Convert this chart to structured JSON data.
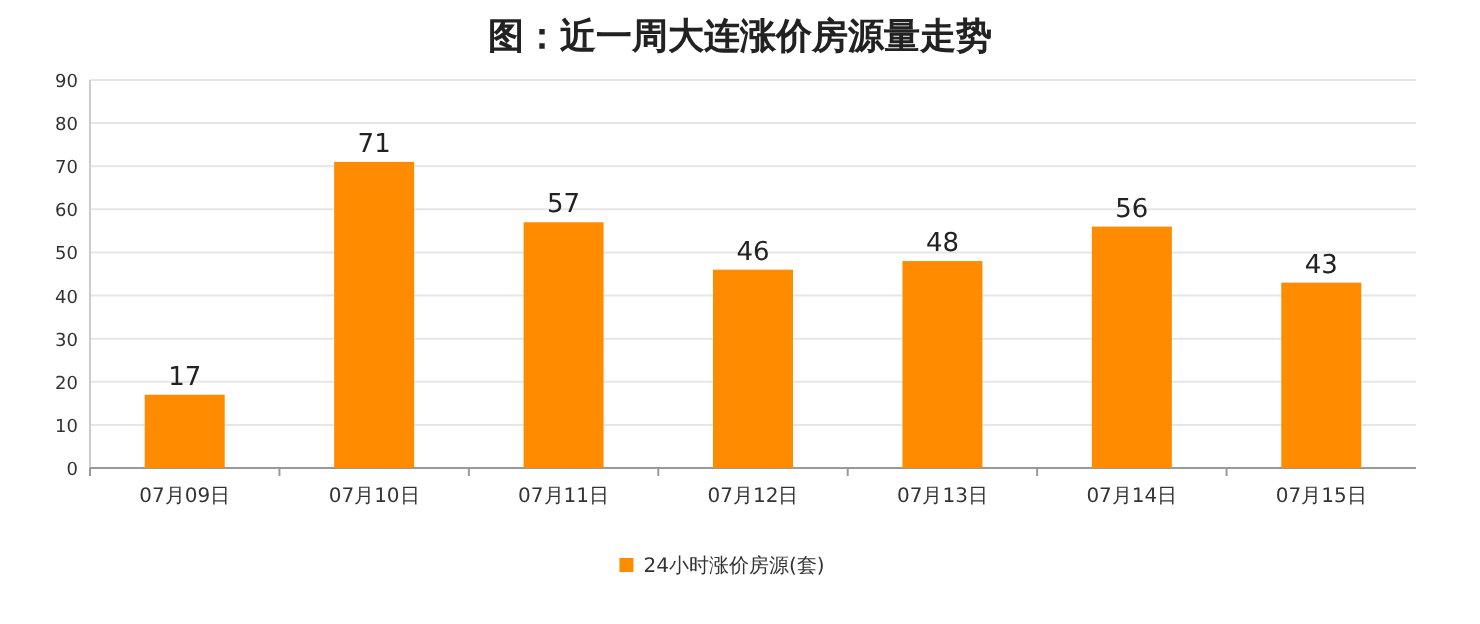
{
  "chart_data": {
    "type": "bar",
    "title": "图：近一周大连涨价房源量走势",
    "categories": [
      "07月09日",
      "07月10日",
      "07月11日",
      "07月12日",
      "07月13日",
      "07月14日",
      "07月15日"
    ],
    "series": [
      {
        "name": "24小时涨价房源(套)",
        "color": "#ff8c00",
        "values": [
          17,
          71,
          57,
          46,
          48,
          56,
          43
        ]
      }
    ],
    "ylim": [
      0,
      90
    ],
    "yticks": [
      0,
      10,
      20,
      30,
      40,
      50,
      60,
      70,
      80,
      90
    ],
    "grid": "y",
    "legend": "bottom",
    "data_labels": true
  }
}
